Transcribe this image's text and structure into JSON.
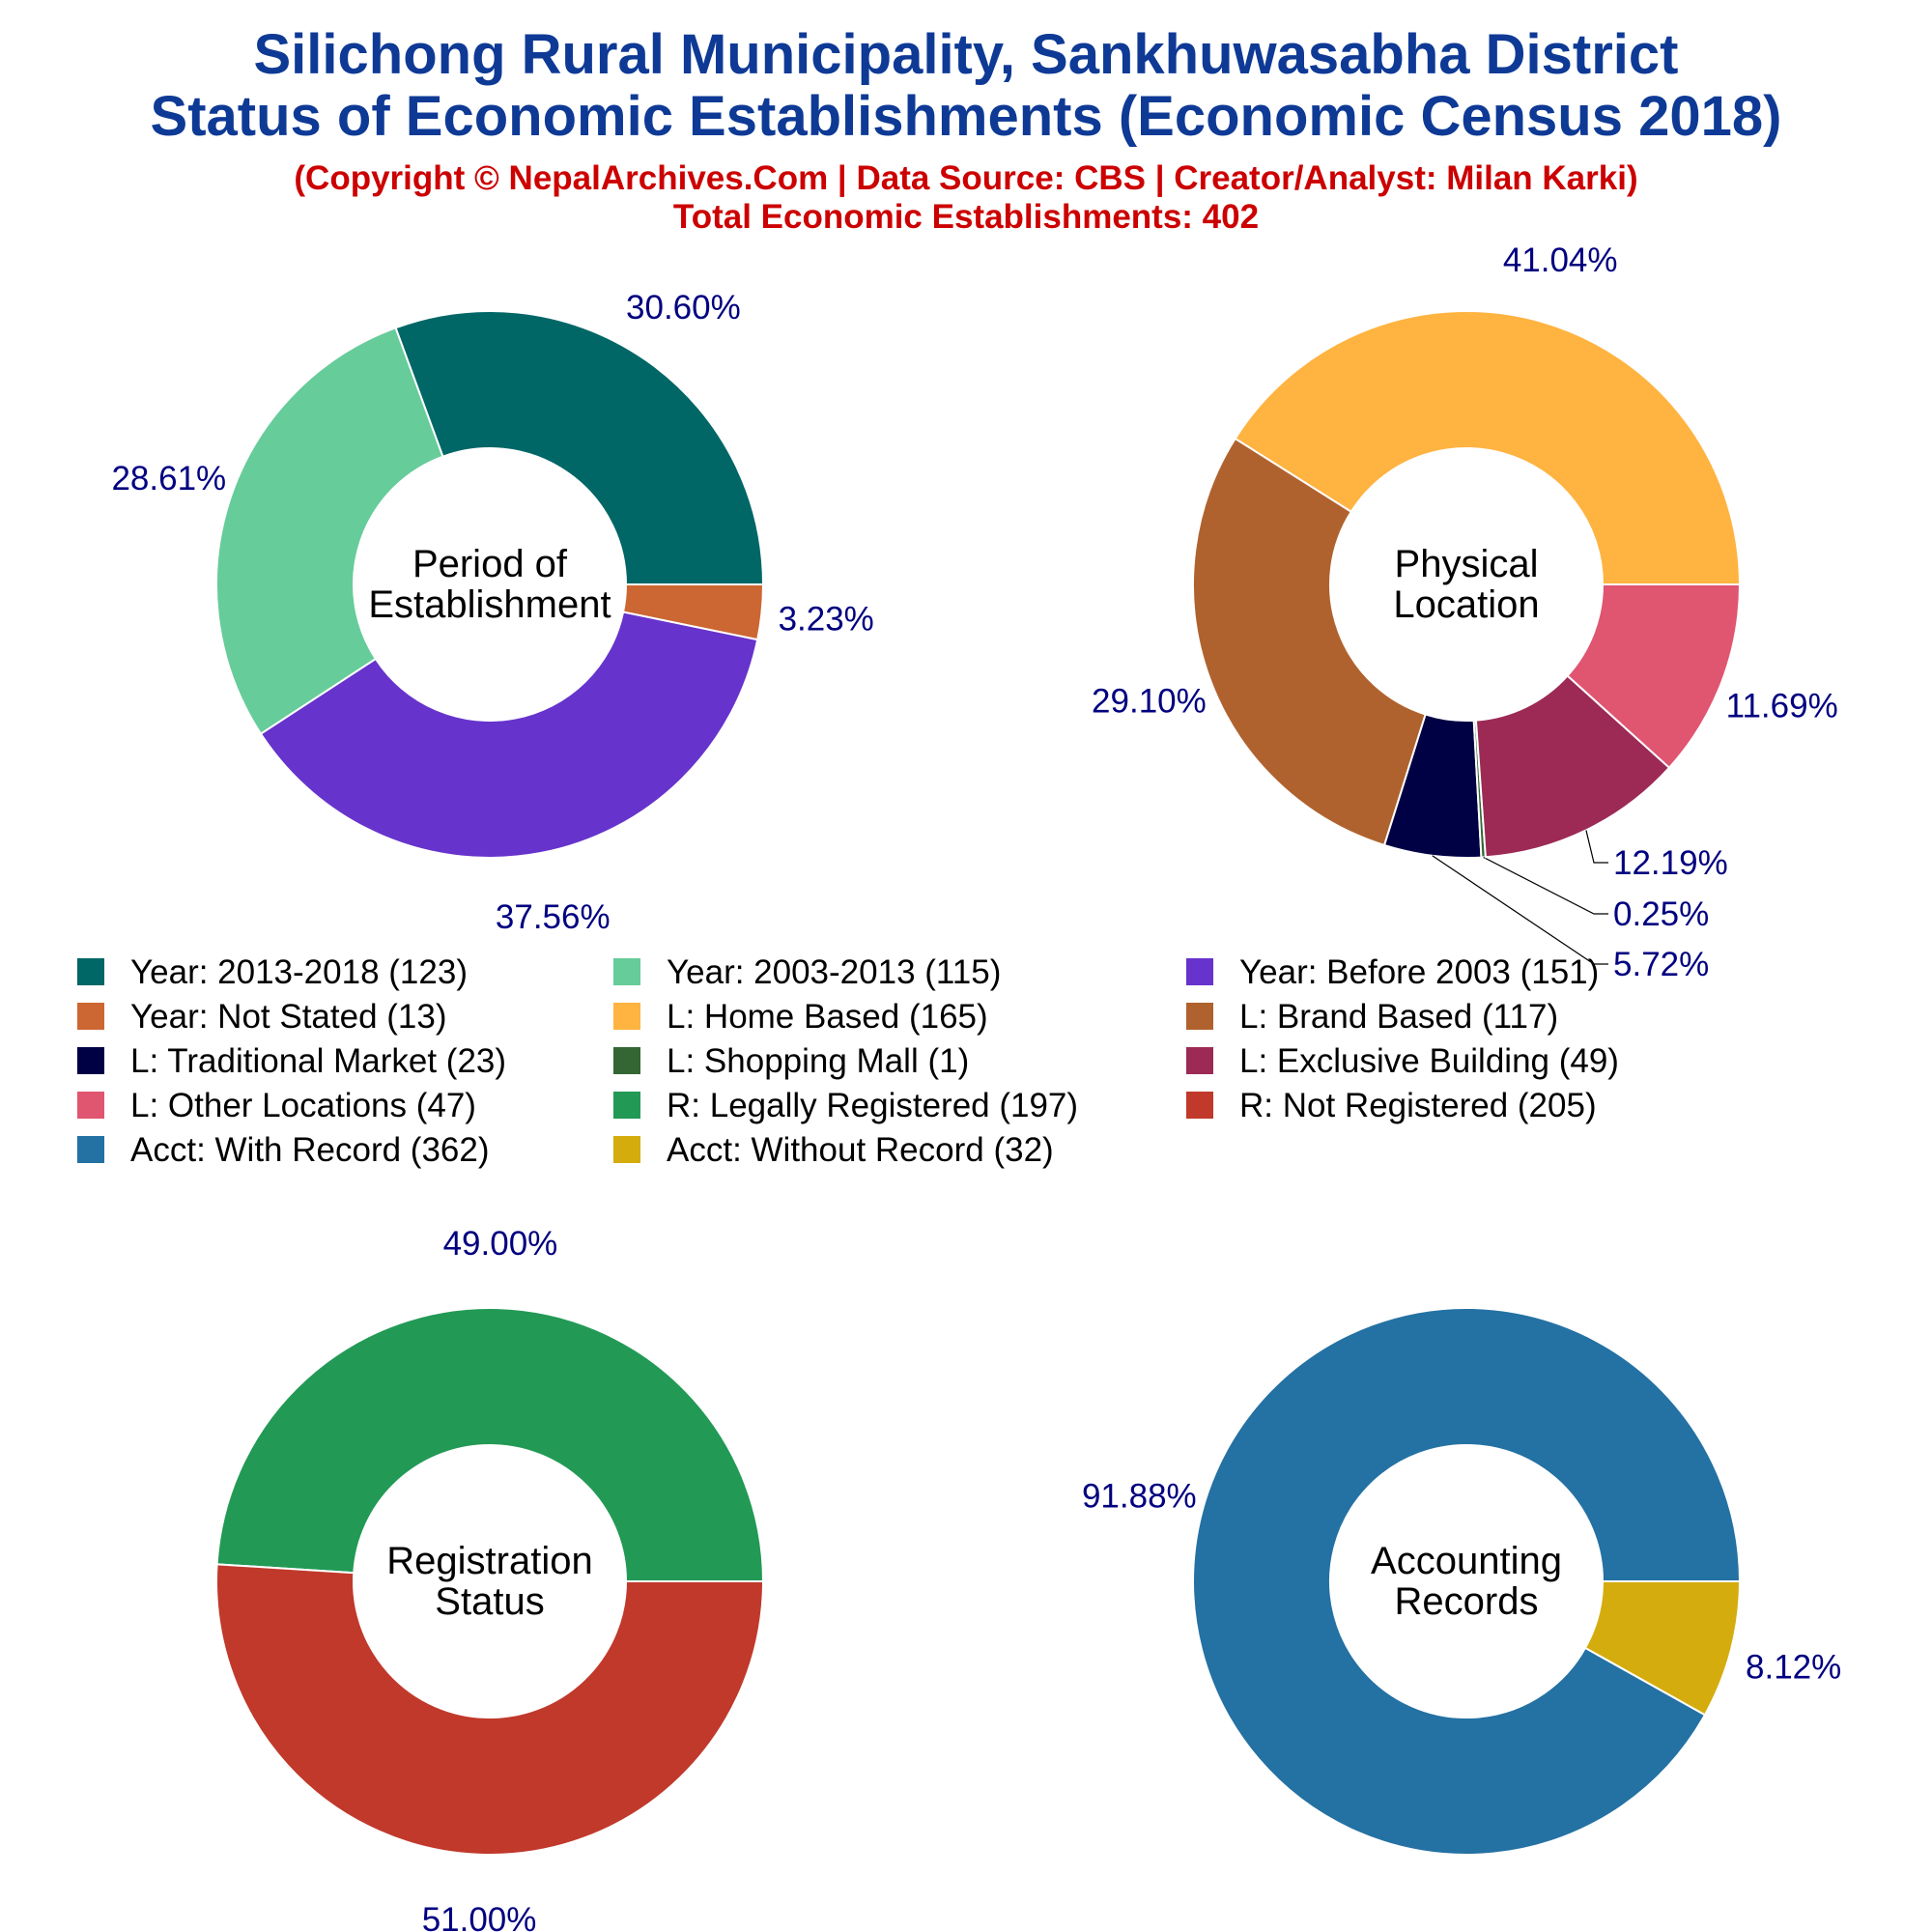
{
  "header": {
    "title_line1": "Silichong Rural Municipality, Sankhuwasabha District",
    "title_line2": "Status of Economic Establishments (Economic Census 2018)",
    "copyright": "(Copyright © NepalArchives.Com | Data Source: CBS | Creator/Analyst: Milan Karki)",
    "total": "Total Economic Establishments: 402"
  },
  "chart_data": [
    {
      "type": "pie",
      "center_label": [
        "Period of",
        "Establishment"
      ],
      "labels": [
        "Year: 2013-2018",
        "Year: 2003-2013",
        "Year: Before 2003",
        "Year: Not Stated"
      ],
      "values": [
        123,
        115,
        151,
        13
      ],
      "percent_labels": [
        "30.60%",
        "28.61%",
        "37.56%",
        "3.23%"
      ],
      "colors": [
        "#006666",
        "#66cc99",
        "#6633cc",
        "#cc6633"
      ]
    },
    {
      "type": "pie",
      "center_label": [
        "Physical",
        "Location"
      ],
      "labels": [
        "L: Home Based",
        "L: Brand Based",
        "L: Traditional Market",
        "L: Shopping Mall",
        "L: Exclusive Building",
        "L: Other Locations"
      ],
      "values": [
        165,
        117,
        23,
        1,
        49,
        47
      ],
      "percent_labels": [
        "41.04%",
        "29.10%",
        "5.72%",
        "0.25%",
        "12.19%",
        "11.69%"
      ],
      "colors": [
        "#ffb340",
        "#b0622e",
        "#000044",
        "#336633",
        "#9c2a55",
        "#e05570"
      ]
    },
    {
      "type": "pie",
      "center_label": [
        "Registration",
        "Status"
      ],
      "labels": [
        "R: Legally Registered",
        "R: Not Registered"
      ],
      "values": [
        197,
        205
      ],
      "percent_labels": [
        "49.00%",
        "51.00%"
      ],
      "colors": [
        "#229955",
        "#c0392b"
      ]
    },
    {
      "type": "pie",
      "center_label": [
        "Accounting",
        "Records"
      ],
      "labels": [
        "Acct: With Record",
        "Acct: Without Record"
      ],
      "values": [
        362,
        32
      ],
      "percent_labels": [
        "91.88%",
        "8.12%"
      ],
      "colors": [
        "#2471a3",
        "#d4ac0d"
      ]
    }
  ],
  "legend": [
    {
      "label": "Year: 2013-2018 (123)",
      "color": "#006666"
    },
    {
      "label": "Year: 2003-2013 (115)",
      "color": "#66cc99"
    },
    {
      "label": "Year: Before 2003 (151)",
      "color": "#6633cc"
    },
    {
      "label": "Year: Not Stated (13)",
      "color": "#cc6633"
    },
    {
      "label": "L: Home Based (165)",
      "color": "#ffb340"
    },
    {
      "label": "L: Brand Based (117)",
      "color": "#b0622e"
    },
    {
      "label": "L: Traditional Market (23)",
      "color": "#000044"
    },
    {
      "label": "L: Shopping Mall (1)",
      "color": "#336633"
    },
    {
      "label": "L: Exclusive Building (49)",
      "color": "#9c2a55"
    },
    {
      "label": "L: Other Locations (47)",
      "color": "#e05570"
    },
    {
      "label": "R: Legally Registered (197)",
      "color": "#229955"
    },
    {
      "label": "R: Not Registered (205)",
      "color": "#c0392b"
    },
    {
      "label": "Acct: With Record (362)",
      "color": "#2471a3"
    },
    {
      "label": "Acct: Without Record (32)",
      "color": "#d4ac0d"
    }
  ]
}
